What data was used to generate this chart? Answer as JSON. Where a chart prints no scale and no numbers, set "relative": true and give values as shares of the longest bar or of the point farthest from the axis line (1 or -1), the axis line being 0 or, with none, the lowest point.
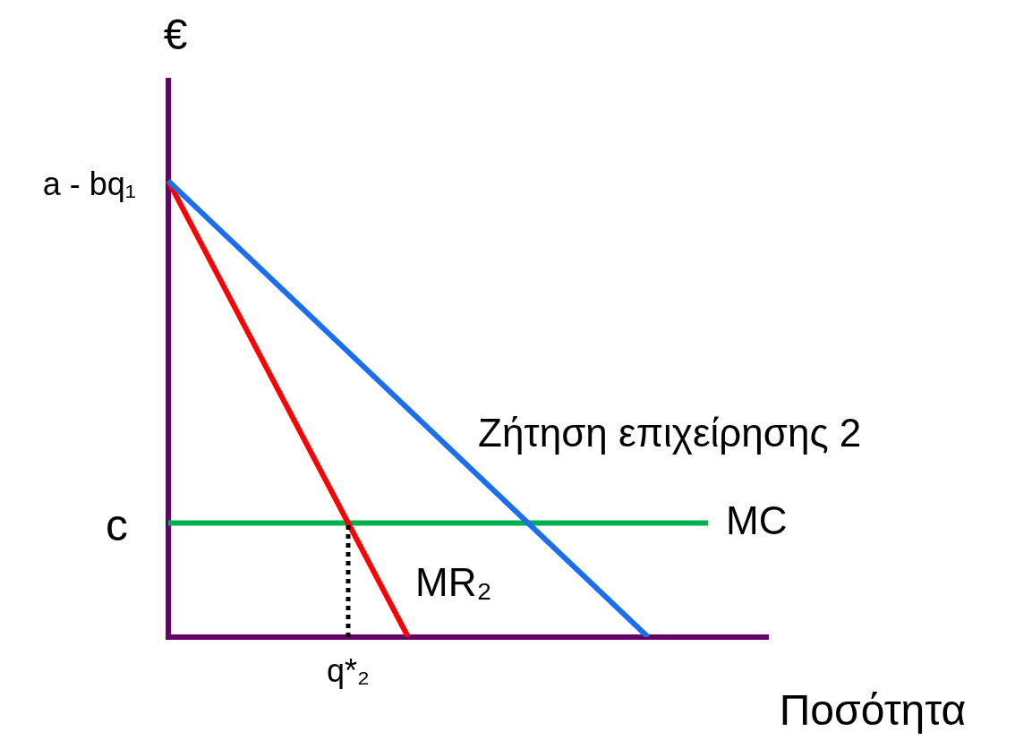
{
  "chart_data": {
    "type": "line",
    "xlabel": "Ποσότητα",
    "ylabel": "€",
    "categories": [
      null,
      null,
      null,
      null,
      null,
      null,
      null,
      null,
      null,
      null,
      null
    ],
    "relative": true,
    "legend": false,
    "marker": "none",
    "series": [
      {
        "name": "Ζήτηση επιχείρησης 2",
        "color": "#1a6ff0",
        "values": [
          1,
          null,
          null,
          null,
          null,
          null,
          null,
          null,
          0,
          null,
          null
        ]
      },
      {
        "name": "MR₂",
        "color": "#ff0000",
        "values": [
          1,
          null,
          null,
          null,
          0,
          null,
          null,
          null,
          null,
          null,
          null
        ]
      },
      {
        "name": "MC",
        "color": "#00b050",
        "values": [
          0.25,
          0.25,
          0.25,
          0.25,
          0.25,
          0.25,
          0.25,
          0.25,
          0.25,
          0.25,
          null
        ]
      }
    ],
    "annotations": [
      "a - bq₁",
      "c",
      {
        "text": "q*₂",
        "y": 0.25
      }
    ]
  }
}
